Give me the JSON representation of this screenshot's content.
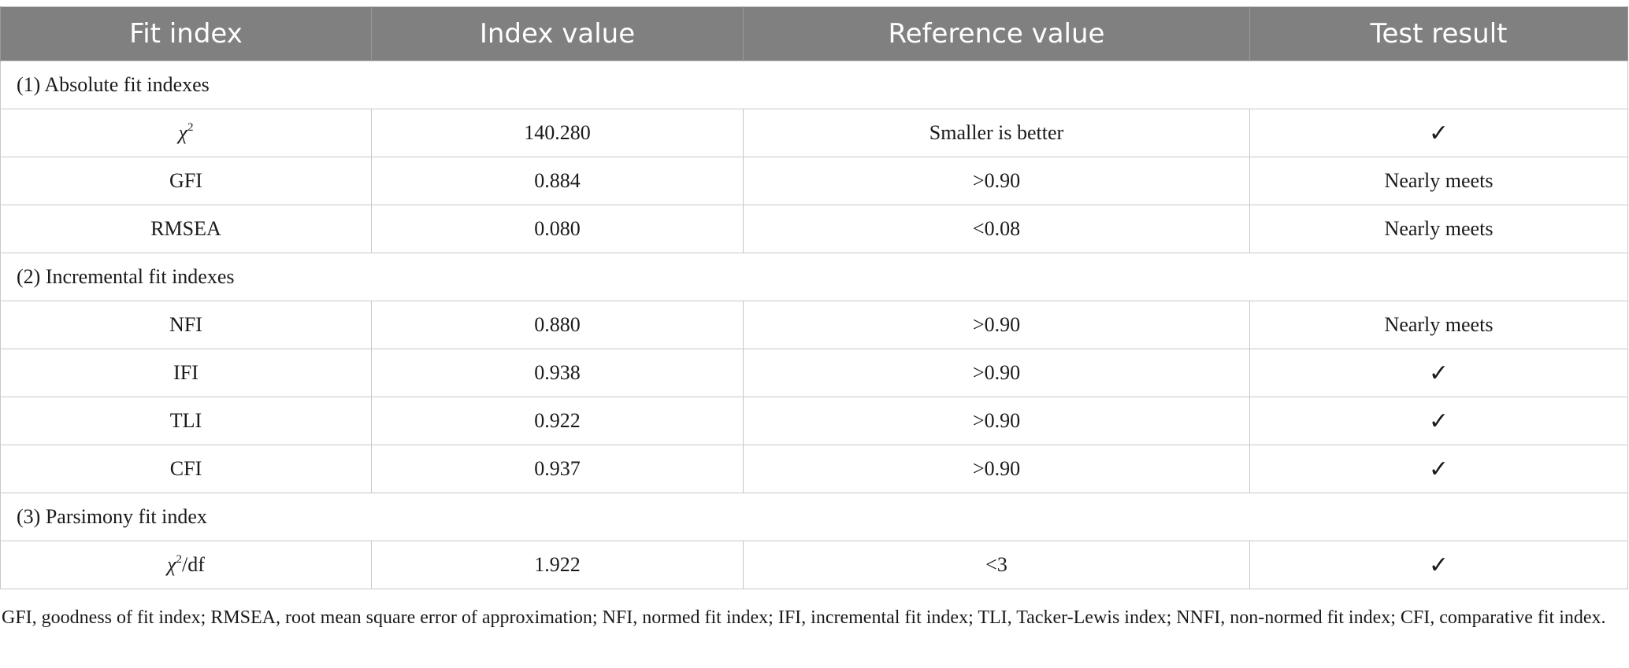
{
  "header": {
    "col1": "Fit index",
    "col2": "Index value",
    "col3": "Reference value",
    "col4": "Test result"
  },
  "sections": {
    "absolute": "(1) Absolute fit indexes",
    "incremental": "(2) Incremental fit indexes",
    "parsimony": "(3) Parsimony fit index"
  },
  "rows": {
    "chi2": {
      "symbol": "χ",
      "exponent": "2",
      "value": "140.280",
      "reference": "Smaller is better",
      "result": "✓"
    },
    "gfi": {
      "index": "GFI",
      "value": "0.884",
      "reference": ">0.90",
      "result": "Nearly meets"
    },
    "rmsea": {
      "index": "RMSEA",
      "value": "0.080",
      "reference": "<0.08",
      "result": "Nearly meets"
    },
    "nfi": {
      "index": "NFI",
      "value": "0.880",
      "reference": ">0.90",
      "result": "Nearly meets"
    },
    "ifi": {
      "index": "IFI",
      "value": "0.938",
      "reference": ">0.90",
      "result": "✓"
    },
    "tli": {
      "index": "TLI",
      "value": "0.922",
      "reference": ">0.90",
      "result": "✓"
    },
    "cfi": {
      "index": "CFI",
      "value": "0.937",
      "reference": ">0.90",
      "result": "✓"
    },
    "chi2df": {
      "symbol": "χ",
      "exponent": "2",
      "suffix": "/df",
      "value": "1.922",
      "reference": "<3",
      "result": "✓"
    }
  },
  "footnote": "GFI, goodness of fit index; RMSEA, root mean square error of approximation; NFI, normed fit index; IFI, incremental fit index; TLI, Tacker-Lewis index; NNFI, non-normed fit index; CFI, comparative fit index."
}
